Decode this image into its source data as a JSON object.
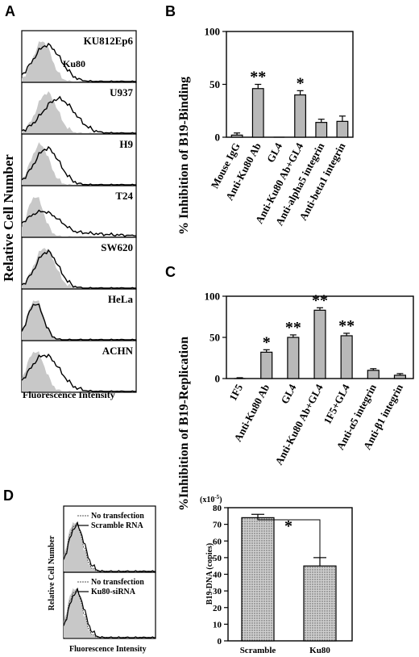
{
  "panel_letters": {
    "a": "A",
    "b": "B",
    "c": "C",
    "d": "D"
  },
  "panel_a": {
    "ylabel": "Relative Cell Number",
    "xlabel": "Fluorescence Intensity",
    "first_panel_label": "Ku80",
    "cells": [
      "KU812Ep6",
      "U937",
      "H9",
      "T24",
      "SW620",
      "HeLa",
      "ACHN"
    ]
  },
  "panel_d_hist": {
    "ylabel": "Relative Cell Number",
    "xlabel": "Fluorescence Intensity",
    "top_legend": [
      "No transfection",
      "Scramble RNA"
    ],
    "bottom_legend": [
      "No transfection",
      "Ku80-siRNA"
    ]
  },
  "colors": {
    "bar_fill": "#b8b8b8",
    "histogram_fill": "#c8c8c8",
    "stippled_bar": "#d0d0d0"
  },
  "chart_data": [
    {
      "type": "bar",
      "panel": "B",
      "ylabel": "% Inhibition of B19-Binding",
      "ylim": [
        0,
        100
      ],
      "yticks": [
        0,
        50,
        100
      ],
      "categories": [
        "Mouse IgG",
        "Anti-Ku80 Ab",
        "GL4",
        "Anti-Ku80 Ab+GL4",
        "Anti-alpha5 integrin",
        "Anti-beta1 integrin"
      ],
      "values": [
        2,
        46,
        0,
        40,
        14,
        15
      ],
      "errors": [
        2,
        4,
        0,
        4,
        3,
        5
      ],
      "significance": [
        "",
        "**",
        "",
        "*",
        "",
        ""
      ]
    },
    {
      "type": "bar",
      "panel": "C",
      "ylabel": "%Inhibition of B19-Replication",
      "ylim": [
        0,
        100
      ],
      "yticks": [
        0,
        50,
        100
      ],
      "categories": [
        "1F5",
        "Anti-Ku80 Ab",
        "GL4",
        "Anti-Ku80 Ab+GL4",
        "1F5+GL4",
        "Anti-α5 integrin",
        "Anti-β1 integrin"
      ],
      "values": [
        0,
        32,
        50,
        83,
        52,
        10,
        4
      ],
      "errors": [
        1,
        3,
        3,
        3,
        3,
        2,
        2
      ],
      "significance": [
        "",
        "*",
        "**",
        "**",
        "**",
        "",
        ""
      ]
    },
    {
      "type": "bar",
      "panel": "D",
      "ylabel": "B19-DNA (copies)",
      "yunit": "(x10",
      "yunit_exp": "-5",
      "yunit_close": ")",
      "ylim": [
        0,
        80
      ],
      "yticks": [
        0,
        10,
        20,
        30,
        40,
        50,
        60,
        70,
        80
      ],
      "categories": [
        "Scramble",
        "Ku80"
      ],
      "values": [
        74,
        45
      ],
      "errors": [
        2,
        5
      ],
      "bracket_label": "*"
    }
  ]
}
